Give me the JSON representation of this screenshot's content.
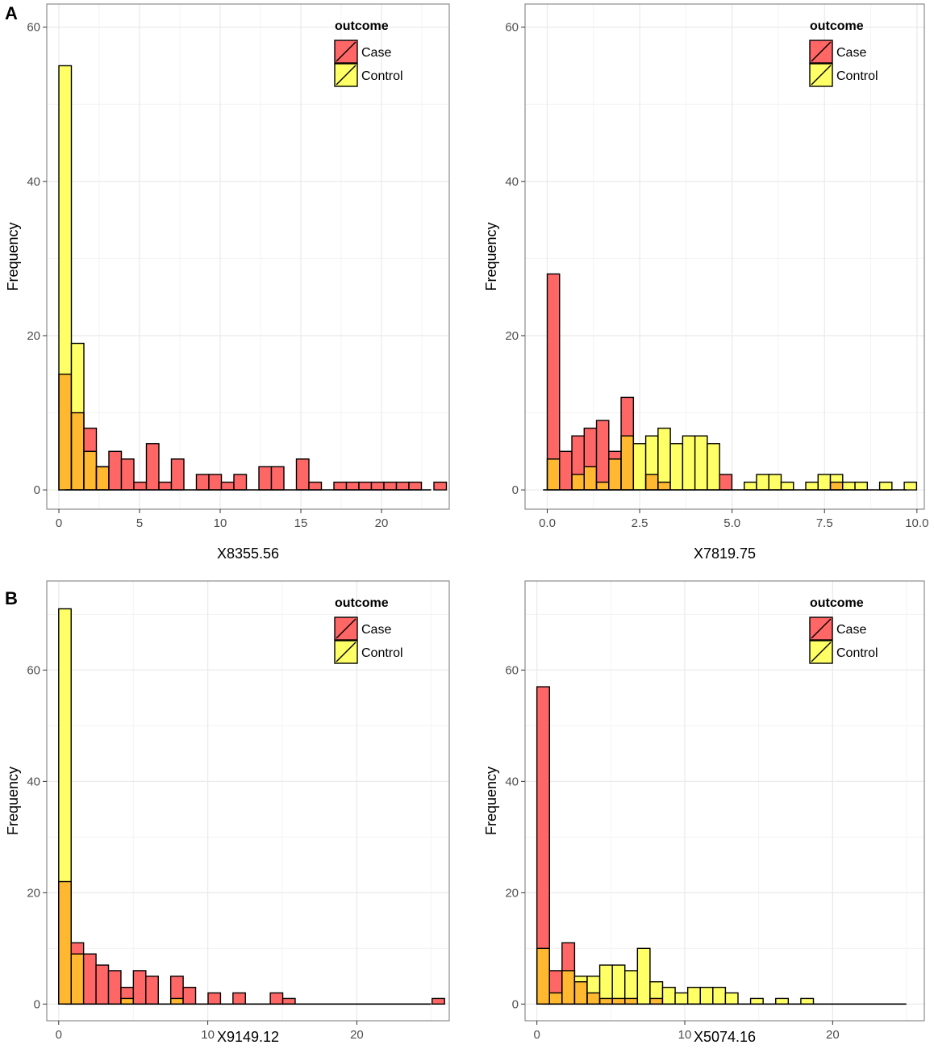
{
  "panel_labels": {
    "a": "A",
    "b": "B"
  },
  "colors": {
    "case": "#ff6666",
    "control": "#ffff66",
    "overlap": "#ffb830",
    "grid": "#ebebeb",
    "border": "#8c8c8c",
    "outline": "#000000"
  },
  "chart_data": [
    {
      "type": "histogram",
      "panel": "A-left",
      "xlabel": "X8355.56",
      "ylabel": "Frequency",
      "legend": {
        "title": "outcome",
        "entries": [
          "Case",
          "Control"
        ],
        "position": "top-right"
      },
      "xlim": [
        -0.75,
        24.2
      ],
      "ylim": [
        -2.5,
        63
      ],
      "xticks": [
        0,
        5,
        10,
        15,
        20
      ],
      "xtick_labels": [
        "0",
        "5",
        "10",
        "15",
        "20"
      ],
      "yticks": [
        0,
        20,
        40,
        60
      ],
      "ytick_labels": [
        "0",
        "20",
        "40",
        "60"
      ],
      "bin_start": 0,
      "bin_width": 0.775,
      "case": [
        15,
        10,
        8,
        3,
        5,
        4,
        1,
        6,
        1,
        4,
        0,
        2,
        2,
        1,
        2,
        0,
        3,
        3,
        0,
        4,
        1,
        0,
        1,
        1,
        1,
        1,
        1,
        1,
        1,
        0,
        1
      ],
      "control": [
        55,
        19,
        5,
        3,
        0,
        0,
        0,
        0,
        0,
        0,
        0,
        0,
        0,
        0,
        0,
        0,
        0,
        0,
        0,
        0,
        0,
        0,
        0,
        0,
        0,
        0,
        0,
        0,
        0,
        0,
        0
      ]
    },
    {
      "type": "histogram",
      "panel": "A-right",
      "xlabel": "X7819.75",
      "ylabel": "Frequency",
      "legend": {
        "title": "outcome",
        "entries": [
          "Case",
          "Control"
        ],
        "position": "top-right"
      },
      "xlim": [
        -0.6,
        10.2
      ],
      "ylim": [
        -2.5,
        63
      ],
      "xticks": [
        0,
        2.5,
        5,
        7.5,
        10
      ],
      "xtick_labels": [
        "0.0",
        "2.5",
        "5.0",
        "7.5",
        "10.0"
      ],
      "yticks": [
        0,
        20,
        40,
        60
      ],
      "ytick_labels": [
        "0",
        "20",
        "40",
        "60"
      ],
      "bin_start": 0,
      "bin_width": 0.333,
      "case": [
        28,
        5,
        7,
        8,
        9,
        5,
        12,
        0,
        2,
        1,
        0,
        0,
        0,
        0,
        2,
        0,
        0,
        0,
        0,
        0,
        0,
        0,
        0,
        1,
        0,
        0,
        0,
        0,
        0,
        0,
        0
      ],
      "control": [
        4,
        0,
        2,
        3,
        1,
        4,
        7,
        6,
        7,
        8,
        6,
        7,
        7,
        6,
        0,
        0,
        1,
        2,
        2,
        1,
        0,
        1,
        2,
        2,
        1,
        1,
        0,
        1,
        0,
        1,
        0
      ]
    },
    {
      "type": "histogram",
      "panel": "B-left",
      "xlabel": "X9149.12",
      "ylabel": "Frequency",
      "legend": {
        "title": "outcome",
        "entries": [
          "Case",
          "Control"
        ],
        "position": "top-right"
      },
      "xlim": [
        -0.8,
        26.2
      ],
      "ylim": [
        -3,
        76
      ],
      "xticks": [
        0,
        10,
        20
      ],
      "xtick_labels": [
        "0",
        "10",
        "20"
      ],
      "yticks": [
        0,
        20,
        40,
        60
      ],
      "ytick_labels": [
        "0",
        "20",
        "40",
        "60"
      ],
      "bin_start": 0,
      "bin_width": 0.835,
      "case": [
        22,
        11,
        9,
        7,
        6,
        3,
        6,
        5,
        0,
        5,
        3,
        0,
        2,
        0,
        2,
        0,
        0,
        2,
        1,
        0,
        0,
        0,
        0,
        0,
        0,
        0,
        0,
        0,
        0,
        0,
        1
      ],
      "control": [
        71,
        9,
        0,
        0,
        0,
        1,
        0,
        0,
        0,
        1,
        0,
        0,
        0,
        0,
        0,
        0,
        0,
        0,
        0,
        0,
        0,
        0,
        0,
        0,
        0,
        0,
        0,
        0,
        0,
        0,
        0
      ]
    },
    {
      "type": "histogram",
      "panel": "B-right",
      "xlabel": "X5074.16",
      "ylabel": "Frequency",
      "legend": {
        "title": "outcome",
        "entries": [
          "Case",
          "Control"
        ],
        "position": "top-right"
      },
      "xlim": [
        -0.8,
        26.2
      ],
      "ylim": [
        -3,
        76
      ],
      "xticks": [
        0,
        10,
        20
      ],
      "xtick_labels": [
        "0",
        "10",
        "20"
      ],
      "yticks": [
        0,
        20,
        40,
        60
      ],
      "ytick_labels": [
        "0",
        "20",
        "40",
        "60"
      ],
      "bin_start": 0,
      "bin_width": 0.85,
      "case": [
        57,
        6,
        11,
        4,
        2,
        1,
        1,
        1,
        0,
        1,
        0,
        0,
        0,
        0,
        0,
        0,
        0,
        0,
        0,
        0,
        0,
        0,
        0,
        0,
        0,
        0,
        0,
        0,
        0,
        0
      ],
      "control": [
        10,
        2,
        6,
        5,
        5,
        7,
        7,
        6,
        10,
        4,
        3,
        2,
        3,
        3,
        3,
        2,
        0,
        1,
        0,
        1,
        0,
        1,
        0,
        0,
        0,
        0,
        0,
        0,
        0,
        0
      ]
    }
  ]
}
